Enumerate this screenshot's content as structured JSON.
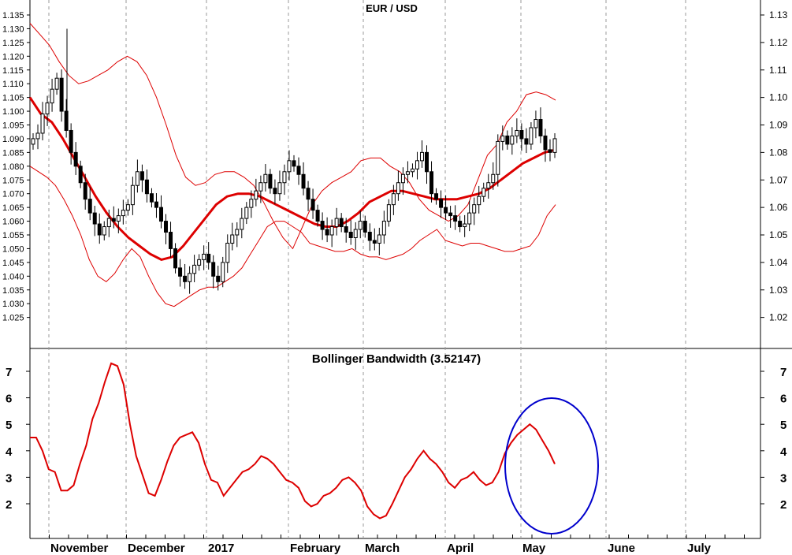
{
  "chart_data": [
    {
      "type": "candlestick",
      "title": "EUR / USD",
      "ylim": [
        1.02,
        1.135
      ],
      "y_ticks": [
        "1.025",
        "1.030",
        "1.035",
        "1.040",
        "1.045",
        "1.050",
        "1.055",
        "1.060",
        "1.065",
        "1.070",
        "1.075",
        "1.080",
        "1.085",
        "1.090",
        "1.095",
        "1.100",
        "1.105",
        "1.110",
        "1.115",
        "1.120",
        "1.125",
        "1.130",
        "1.135"
      ],
      "y_ticks_right": [
        "1.02",
        "1.03",
        "1.04",
        "1.05",
        "1.06",
        "1.07",
        "1.08",
        "1.09",
        "1.10",
        "1.11",
        "1.12",
        "1.13"
      ],
      "x_ticks": [
        "November",
        "December",
        "2017",
        "February",
        "March",
        "April",
        "May",
        "June",
        "July"
      ],
      "colors": {
        "price": "#000000",
        "bands": "#dd0000",
        "middle": "#dd0000"
      },
      "price_close": [
        1.09,
        1.092,
        1.099,
        1.103,
        1.108,
        1.112,
        1.1,
        1.093,
        1.085,
        1.08,
        1.074,
        1.068,
        1.063,
        1.059,
        1.055,
        1.058,
        1.061,
        1.06,
        1.062,
        1.064,
        1.066,
        1.073,
        1.078,
        1.075,
        1.07,
        1.067,
        1.065,
        1.06,
        1.056,
        1.05,
        1.043,
        1.04,
        1.038,
        1.041,
        1.044,
        1.046,
        1.048,
        1.045,
        1.04,
        1.038,
        1.045,
        1.052,
        1.055,
        1.057,
        1.061,
        1.065,
        1.068,
        1.071,
        1.074,
        1.077,
        1.072,
        1.07,
        1.074,
        1.078,
        1.082,
        1.08,
        1.077,
        1.072,
        1.068,
        1.064,
        1.06,
        1.057,
        1.055,
        1.058,
        1.061,
        1.058,
        1.056,
        1.054,
        1.057,
        1.06,
        1.056,
        1.053,
        1.052,
        1.055,
        1.06,
        1.066,
        1.07,
        1.074,
        1.077,
        1.078,
        1.079,
        1.082,
        1.085,
        1.078,
        1.07,
        1.068,
        1.065,
        1.063,
        1.062,
        1.06,
        1.058,
        1.059,
        1.063,
        1.066,
        1.069,
        1.072,
        1.074,
        1.077,
        1.089,
        1.091,
        1.088,
        1.091,
        1.093,
        1.09,
        1.088,
        1.094,
        1.097,
        1.091,
        1.086,
        1.085,
        1.09
      ],
      "upper_band": [
        1.132,
        1.128,
        1.124,
        1.118,
        1.113,
        1.11,
        1.111,
        1.113,
        1.115,
        1.118,
        1.12,
        1.118,
        1.113,
        1.105,
        1.095,
        1.084,
        1.076,
        1.073,
        1.074,
        1.077,
        1.078,
        1.078,
        1.076,
        1.073,
        1.067,
        1.06,
        1.054,
        1.05,
        1.058,
        1.066,
        1.071,
        1.074,
        1.076,
        1.078,
        1.082,
        1.083,
        1.083,
        1.08,
        1.078,
        1.074,
        1.068,
        1.064,
        1.062,
        1.06,
        1.062,
        1.066,
        1.075,
        1.084,
        1.088,
        1.096,
        1.1,
        1.106,
        1.107,
        1.106,
        1.104
      ],
      "middle_band": [
        1.105,
        1.099,
        1.096,
        1.09,
        1.083,
        1.076,
        1.069,
        1.063,
        1.058,
        1.054,
        1.051,
        1.048,
        1.046,
        1.047,
        1.051,
        1.056,
        1.061,
        1.066,
        1.069,
        1.07,
        1.07,
        1.069,
        1.067,
        1.065,
        1.063,
        1.061,
        1.059,
        1.058,
        1.058,
        1.06,
        1.063,
        1.067,
        1.069,
        1.071,
        1.071,
        1.07,
        1.069,
        1.068,
        1.068,
        1.068,
        1.069,
        1.07,
        1.072,
        1.075,
        1.078,
        1.081,
        1.083,
        1.085,
        1.086
      ],
      "lower_band": [
        1.08,
        1.078,
        1.076,
        1.073,
        1.068,
        1.062,
        1.055,
        1.046,
        1.04,
        1.038,
        1.041,
        1.046,
        1.05,
        1.047,
        1.04,
        1.034,
        1.03,
        1.029,
        1.031,
        1.033,
        1.035,
        1.036,
        1.036,
        1.038,
        1.04,
        1.043,
        1.048,
        1.053,
        1.058,
        1.06,
        1.06,
        1.058,
        1.056,
        1.052,
        1.051,
        1.05,
        1.049,
        1.049,
        1.05,
        1.048,
        1.047,
        1.047,
        1.046,
        1.047,
        1.048,
        1.05,
        1.053,
        1.055,
        1.057,
        1.053,
        1.052,
        1.051,
        1.052,
        1.052,
        1.051,
        1.05,
        1.049,
        1.049,
        1.05,
        1.051,
        1.055,
        1.062,
        1.066
      ]
    },
    {
      "type": "line",
      "title": "Bollinger Bandwidth (3.52147)",
      "ylim": [
        0.8,
        7.6
      ],
      "y_ticks": [
        "2",
        "3",
        "4",
        "5",
        "6",
        "7"
      ],
      "series": [
        {
          "color": "#dd0000",
          "values": [
            4.5,
            4.5,
            4.0,
            3.3,
            3.2,
            2.5,
            2.5,
            2.7,
            3.5,
            4.2,
            5.2,
            5.8,
            6.6,
            7.3,
            7.2,
            6.5,
            5.0,
            3.8,
            3.1,
            2.4,
            2.3,
            2.9,
            3.6,
            4.2,
            4.5,
            4.6,
            4.7,
            4.3,
            3.5,
            2.9,
            2.8,
            2.3,
            2.6,
            2.9,
            3.2,
            3.3,
            3.5,
            3.8,
            3.7,
            3.5,
            3.2,
            2.9,
            2.8,
            2.6,
            2.1,
            1.9,
            2.0,
            2.3,
            2.4,
            2.6,
            2.9,
            3.0,
            2.8,
            2.5,
            1.9,
            1.6,
            1.45,
            1.55,
            2.0,
            2.5,
            3.0,
            3.3,
            3.7,
            4.0,
            3.7,
            3.5,
            3.2,
            2.8,
            2.6,
            2.9,
            3.0,
            3.2,
            2.9,
            2.7,
            2.8,
            3.2,
            3.9,
            4.3,
            4.6,
            4.8,
            5.0,
            4.8,
            4.4,
            4.0,
            3.5
          ]
        }
      ],
      "annotation": {
        "type": "ellipse",
        "color": "#0000cc"
      }
    }
  ]
}
